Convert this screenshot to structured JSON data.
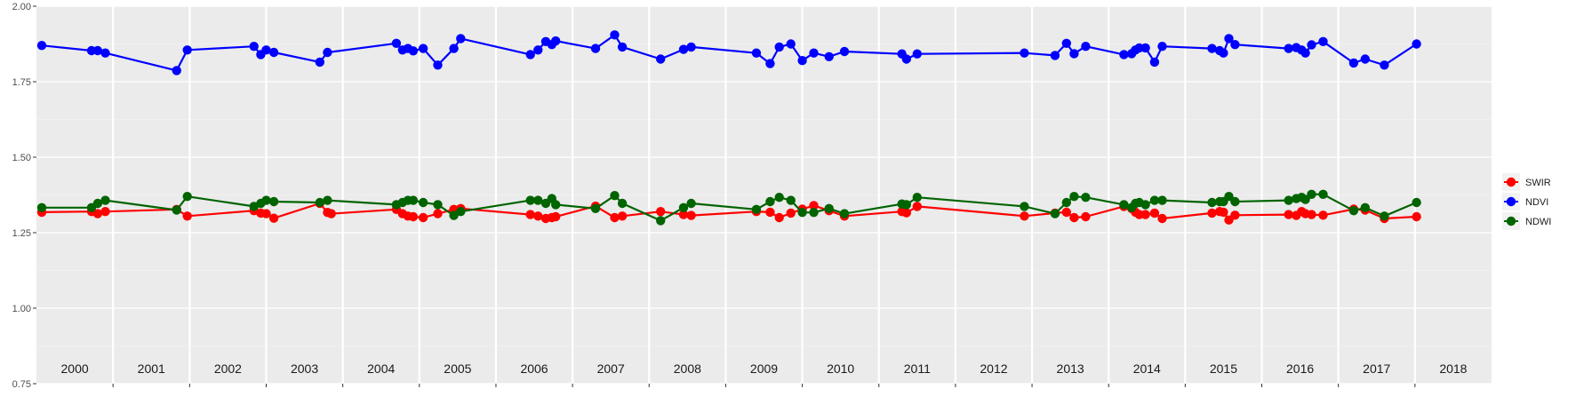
{
  "chart_data": {
    "type": "line",
    "title": "",
    "xlabel": "",
    "ylabel": "",
    "ylim": [
      0.75,
      2.0
    ],
    "yticks": [
      "0.75",
      "1.00",
      "1.25",
      "1.50",
      "1.75",
      "2.00"
    ],
    "xlim": [
      2000.0,
      2019.0
    ],
    "year_labels": [
      "2000",
      "2001",
      "2002",
      "2003",
      "2004",
      "2005",
      "2006",
      "2007",
      "2008",
      "2009",
      "2010",
      "2011",
      "2012",
      "2013",
      "2014",
      "2015",
      "2016",
      "2017",
      "2018"
    ],
    "grid": true,
    "legend_position": "right",
    "series": [
      {
        "name": "SWIR",
        "color": "#ff0000",
        "points": [
          [
            2000.07,
            1.318
          ],
          [
            2000.72,
            1.32
          ],
          [
            2000.8,
            1.313
          ],
          [
            2000.9,
            1.32
          ],
          [
            2001.83,
            1.327
          ],
          [
            2001.97,
            1.305
          ],
          [
            2002.84,
            1.323
          ],
          [
            2002.93,
            1.315
          ],
          [
            2003.0,
            1.313
          ],
          [
            2003.1,
            1.298
          ],
          [
            2003.7,
            1.347
          ],
          [
            2003.8,
            1.317
          ],
          [
            2003.85,
            1.313
          ],
          [
            2004.7,
            1.327
          ],
          [
            2004.78,
            1.313
          ],
          [
            2004.85,
            1.305
          ],
          [
            2004.92,
            1.303
          ],
          [
            2005.05,
            1.3
          ],
          [
            2005.24,
            1.313
          ],
          [
            2005.45,
            1.327
          ],
          [
            2005.54,
            1.33
          ],
          [
            2006.45,
            1.31
          ],
          [
            2006.55,
            1.305
          ],
          [
            2006.65,
            1.297
          ],
          [
            2006.73,
            1.3
          ],
          [
            2006.78,
            1.303
          ],
          [
            2007.3,
            1.338
          ],
          [
            2007.55,
            1.3
          ],
          [
            2007.65,
            1.305
          ],
          [
            2008.15,
            1.32
          ],
          [
            2008.45,
            1.31
          ],
          [
            2008.55,
            1.307
          ],
          [
            2009.4,
            1.32
          ],
          [
            2009.58,
            1.318
          ],
          [
            2009.7,
            1.3
          ],
          [
            2009.85,
            1.315
          ],
          [
            2010.0,
            1.328
          ],
          [
            2010.15,
            1.34
          ],
          [
            2010.35,
            1.323
          ],
          [
            2010.55,
            1.305
          ],
          [
            2011.3,
            1.32
          ],
          [
            2011.36,
            1.316
          ],
          [
            2011.5,
            1.337
          ],
          [
            2012.9,
            1.305
          ],
          [
            2013.3,
            1.315
          ],
          [
            2013.45,
            1.318
          ],
          [
            2013.55,
            1.3
          ],
          [
            2013.7,
            1.303
          ],
          [
            2014.2,
            1.337
          ],
          [
            2014.3,
            1.33
          ],
          [
            2014.35,
            1.318
          ],
          [
            2014.4,
            1.31
          ],
          [
            2014.48,
            1.31
          ],
          [
            2014.6,
            1.315
          ],
          [
            2014.7,
            1.297
          ],
          [
            2015.35,
            1.315
          ],
          [
            2015.45,
            1.32
          ],
          [
            2015.5,
            1.318
          ],
          [
            2015.57,
            1.292
          ],
          [
            2015.65,
            1.308
          ],
          [
            2016.35,
            1.31
          ],
          [
            2016.45,
            1.307
          ],
          [
            2016.52,
            1.32
          ],
          [
            2016.57,
            1.313
          ],
          [
            2016.65,
            1.31
          ],
          [
            2016.8,
            1.308
          ],
          [
            2017.2,
            1.328
          ],
          [
            2017.35,
            1.325
          ],
          [
            2017.6,
            1.297
          ],
          [
            2018.02,
            1.303
          ]
        ]
      },
      {
        "name": "NDVI",
        "color": "#0000ff",
        "points": [
          [
            2000.07,
            1.87
          ],
          [
            2000.72,
            1.853
          ],
          [
            2000.8,
            1.853
          ],
          [
            2000.9,
            1.845
          ],
          [
            2001.83,
            1.787
          ],
          [
            2001.97,
            1.855
          ],
          [
            2002.84,
            1.867
          ],
          [
            2002.93,
            1.84
          ],
          [
            2003.0,
            1.855
          ],
          [
            2003.1,
            1.847
          ],
          [
            2003.7,
            1.815
          ],
          [
            2003.8,
            1.847
          ],
          [
            2004.7,
            1.877
          ],
          [
            2004.78,
            1.855
          ],
          [
            2004.85,
            1.86
          ],
          [
            2004.92,
            1.852
          ],
          [
            2005.05,
            1.86
          ],
          [
            2005.24,
            1.805
          ],
          [
            2005.45,
            1.86
          ],
          [
            2005.54,
            1.893
          ],
          [
            2006.45,
            1.84
          ],
          [
            2006.55,
            1.855
          ],
          [
            2006.65,
            1.883
          ],
          [
            2006.73,
            1.873
          ],
          [
            2006.78,
            1.885
          ],
          [
            2007.3,
            1.86
          ],
          [
            2007.55,
            1.905
          ],
          [
            2007.65,
            1.865
          ],
          [
            2008.15,
            1.825
          ],
          [
            2008.45,
            1.857
          ],
          [
            2008.55,
            1.865
          ],
          [
            2009.4,
            1.845
          ],
          [
            2009.58,
            1.81
          ],
          [
            2009.7,
            1.865
          ],
          [
            2009.85,
            1.875
          ],
          [
            2010.0,
            1.82
          ],
          [
            2010.15,
            1.845
          ],
          [
            2010.35,
            1.833
          ],
          [
            2010.55,
            1.85
          ],
          [
            2011.3,
            1.842
          ],
          [
            2011.36,
            1.825
          ],
          [
            2011.5,
            1.842
          ],
          [
            2012.9,
            1.845
          ],
          [
            2013.3,
            1.837
          ],
          [
            2013.45,
            1.877
          ],
          [
            2013.55,
            1.843
          ],
          [
            2013.7,
            1.867
          ],
          [
            2014.2,
            1.84
          ],
          [
            2014.3,
            1.843
          ],
          [
            2014.35,
            1.855
          ],
          [
            2014.4,
            1.862
          ],
          [
            2014.48,
            1.862
          ],
          [
            2014.6,
            1.815
          ],
          [
            2014.7,
            1.867
          ],
          [
            2015.35,
            1.86
          ],
          [
            2015.45,
            1.853
          ],
          [
            2015.5,
            1.845
          ],
          [
            2015.57,
            1.893
          ],
          [
            2015.65,
            1.873
          ],
          [
            2016.35,
            1.86
          ],
          [
            2016.45,
            1.863
          ],
          [
            2016.52,
            1.855
          ],
          [
            2016.57,
            1.845
          ],
          [
            2016.65,
            1.872
          ],
          [
            2016.8,
            1.883
          ],
          [
            2017.2,
            1.812
          ],
          [
            2017.35,
            1.825
          ],
          [
            2017.6,
            1.805
          ],
          [
            2018.02,
            1.875
          ]
        ]
      },
      {
        "name": "NDWI",
        "color": "#006400",
        "points": [
          [
            2000.07,
            1.333
          ],
          [
            2000.72,
            1.333
          ],
          [
            2000.8,
            1.347
          ],
          [
            2000.9,
            1.357
          ],
          [
            2001.83,
            1.325
          ],
          [
            2001.97,
            1.37
          ],
          [
            2002.84,
            1.337
          ],
          [
            2002.93,
            1.347
          ],
          [
            2003.0,
            1.357
          ],
          [
            2003.1,
            1.353
          ],
          [
            2003.7,
            1.35
          ],
          [
            2003.8,
            1.357
          ],
          [
            2004.7,
            1.343
          ],
          [
            2004.78,
            1.35
          ],
          [
            2004.85,
            1.357
          ],
          [
            2004.92,
            1.357
          ],
          [
            2005.05,
            1.35
          ],
          [
            2005.24,
            1.343
          ],
          [
            2005.45,
            1.307
          ],
          [
            2005.54,
            1.32
          ],
          [
            2006.45,
            1.357
          ],
          [
            2006.55,
            1.357
          ],
          [
            2006.65,
            1.347
          ],
          [
            2006.73,
            1.363
          ],
          [
            2006.78,
            1.343
          ],
          [
            2007.3,
            1.33
          ],
          [
            2007.55,
            1.373
          ],
          [
            2007.65,
            1.347
          ],
          [
            2008.15,
            1.29
          ],
          [
            2008.45,
            1.333
          ],
          [
            2008.55,
            1.347
          ],
          [
            2009.4,
            1.327
          ],
          [
            2009.58,
            1.353
          ],
          [
            2009.7,
            1.367
          ],
          [
            2009.85,
            1.357
          ],
          [
            2010.0,
            1.317
          ],
          [
            2010.15,
            1.317
          ],
          [
            2010.35,
            1.33
          ],
          [
            2010.55,
            1.313
          ],
          [
            2011.3,
            1.345
          ],
          [
            2011.36,
            1.343
          ],
          [
            2011.5,
            1.367
          ],
          [
            2012.9,
            1.337
          ],
          [
            2013.3,
            1.313
          ],
          [
            2013.45,
            1.35
          ],
          [
            2013.55,
            1.37
          ],
          [
            2013.7,
            1.367
          ],
          [
            2014.2,
            1.343
          ],
          [
            2014.3,
            1.333
          ],
          [
            2014.35,
            1.347
          ],
          [
            2014.4,
            1.35
          ],
          [
            2014.48,
            1.343
          ],
          [
            2014.6,
            1.357
          ],
          [
            2014.7,
            1.357
          ],
          [
            2015.35,
            1.35
          ],
          [
            2015.45,
            1.353
          ],
          [
            2015.5,
            1.353
          ],
          [
            2015.57,
            1.37
          ],
          [
            2015.65,
            1.353
          ],
          [
            2016.35,
            1.357
          ],
          [
            2016.45,
            1.363
          ],
          [
            2016.52,
            1.367
          ],
          [
            2016.57,
            1.36
          ],
          [
            2016.65,
            1.377
          ],
          [
            2016.8,
            1.377
          ],
          [
            2017.2,
            1.323
          ],
          [
            2017.35,
            1.333
          ],
          [
            2017.6,
            1.305
          ],
          [
            2018.02,
            1.35
          ]
        ]
      }
    ]
  }
}
